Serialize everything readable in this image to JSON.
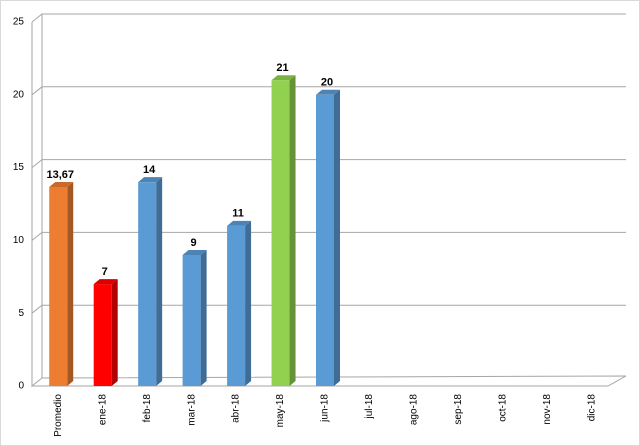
{
  "chart_data": {
    "type": "bar3d",
    "categories": [
      "Promedio",
      "ene-18",
      "feb-18",
      "mar-18",
      "abr-18",
      "may-18",
      "jun-18",
      "jul-18",
      "ago-18",
      "sep-18",
      "oct-18",
      "nov-18",
      "dic-18"
    ],
    "values": [
      13.67,
      7,
      14,
      9,
      11,
      21,
      20,
      null,
      null,
      null,
      null,
      null,
      null
    ],
    "value_labels": [
      "13,67",
      null,
      null,
      null,
      null,
      null,
      null,
      null,
      null,
      null,
      null,
      null,
      null
    ],
    "colors": [
      "#ed7d31",
      "#ff0000",
      "#5b9bd5",
      "#5b9bd5",
      "#5b9bd5",
      "#92d050",
      "#5b9bd5",
      "#5b9bd5",
      "#5b9bd5",
      "#5b9bd5",
      "#5b9bd5",
      "#5b9bd5",
      "#5b9bd5"
    ],
    "ylim": [
      0,
      25
    ],
    "yticks": [
      0,
      5,
      10,
      15,
      20,
      25
    ],
    "grid": true
  }
}
